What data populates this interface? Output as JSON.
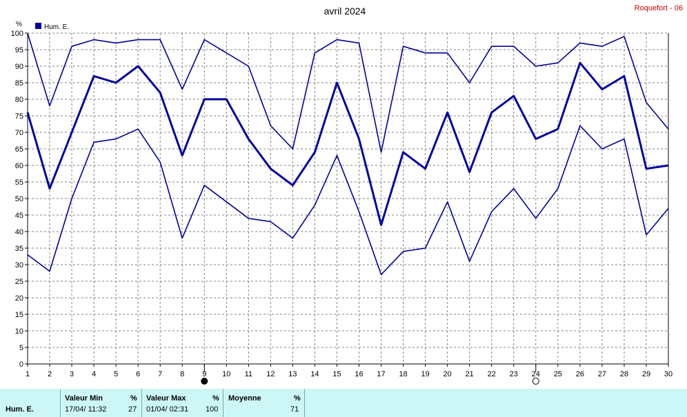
{
  "corner_label": "Roquefort - 06",
  "colors": {
    "series": "#0000a0",
    "grid": "#808080",
    "footer_bg": "#cdf7f7",
    "corner": "#cc0000"
  },
  "chart_data": {
    "type": "line",
    "title": "avril 2024",
    "ylabel": "%",
    "ylim": [
      0,
      100
    ],
    "yticks": [
      0,
      5,
      10,
      15,
      20,
      25,
      30,
      35,
      40,
      45,
      50,
      55,
      60,
      65,
      70,
      75,
      80,
      85,
      90,
      95,
      100
    ],
    "x": [
      1,
      2,
      3,
      4,
      5,
      6,
      7,
      8,
      9,
      10,
      11,
      12,
      13,
      14,
      15,
      16,
      17,
      18,
      19,
      20,
      21,
      22,
      23,
      24,
      25,
      26,
      27,
      28,
      29,
      30
    ],
    "xlim": [
      1,
      30
    ],
    "grid": true,
    "legend": {
      "position": "top-left",
      "entries": [
        "Hum. E."
      ]
    },
    "series": [
      {
        "role": "max",
        "values": [
          100,
          78,
          96,
          98,
          97,
          98,
          98,
          83,
          98,
          94,
          90,
          72,
          65,
          94,
          98,
          97,
          64,
          96,
          94,
          94,
          85,
          96,
          96,
          90,
          91,
          97,
          96,
          99,
          79,
          71
        ]
      },
      {
        "role": "mean",
        "values": [
          76,
          53,
          70,
          87,
          85,
          90,
          82,
          63,
          80,
          80,
          68,
          59,
          54,
          64,
          85,
          68,
          42,
          64,
          59,
          76,
          58,
          76,
          81,
          68,
          71,
          91,
          83,
          87,
          59,
          60
        ]
      },
      {
        "role": "min",
        "values": [
          33,
          28,
          50,
          67,
          68,
          71,
          61,
          38,
          54,
          49,
          44,
          43,
          38,
          48,
          63,
          46,
          27,
          34,
          35,
          49,
          31,
          46,
          53,
          44,
          53,
          72,
          65,
          68,
          39,
          47
        ]
      }
    ],
    "moon_markers": [
      {
        "day": 9,
        "phase": "new"
      },
      {
        "day": 24,
        "phase": "full"
      }
    ]
  },
  "footer": {
    "row_label": "Hum. E.",
    "min": {
      "header": "Valeur Min",
      "unit": "%",
      "when": "17/04/  11:32",
      "value": "27"
    },
    "max": {
      "header": "Valeur Max",
      "unit": "%",
      "when": "01/04/  02:31",
      "value": "100"
    },
    "avg": {
      "header": "Moyenne",
      "unit": "%",
      "value": "71"
    }
  }
}
